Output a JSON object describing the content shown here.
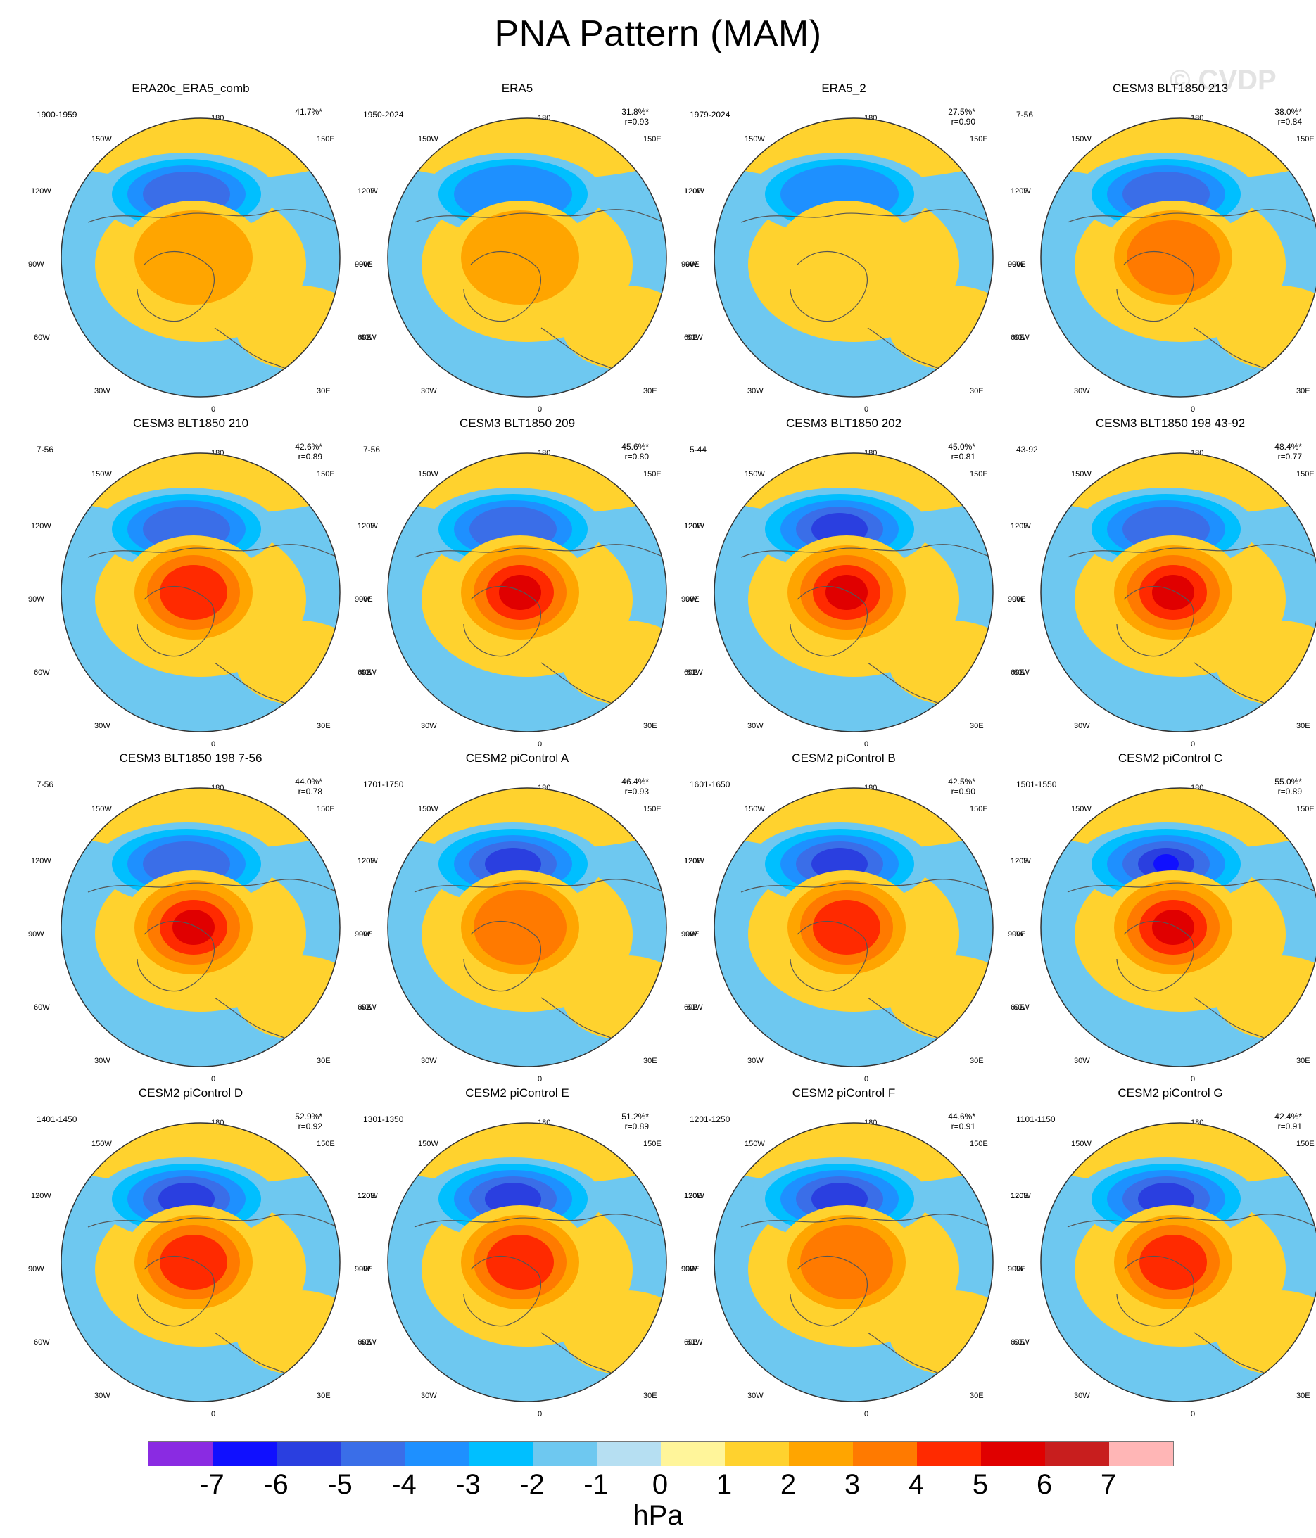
{
  "title": "PNA Pattern (MAM)",
  "watermark": "© CVDP",
  "lon_labels": {
    "top": "180",
    "bottom": "0",
    "upper_left": "150W",
    "upper_right": "150E",
    "mid_upper_left": "120W",
    "mid_upper_right": "120E",
    "left": "90W",
    "right": "90E",
    "mid_lower_left": "60W",
    "mid_lower_right": "60E",
    "lower_left": "30W",
    "lower_right": "30E"
  },
  "panels": [
    {
      "title": "ERA20c_ERA5_comb",
      "years": "1900-1959",
      "pct": "41.7%*",
      "r": ""
    },
    {
      "title": "ERA5",
      "years": "1950-2024",
      "pct": "31.8%*",
      "r": "r=0.93"
    },
    {
      "title": "ERA5_2",
      "years": "1979-2024",
      "pct": "27.5%*",
      "r": "r=0.90"
    },
    {
      "title": "CESM3 BLT1850 213",
      "years": "7-56",
      "pct": "38.0%*",
      "r": "r=0.84"
    },
    {
      "title": "CESM3 BLT1850 210",
      "years": "7-56",
      "pct": "42.6%*",
      "r": "r=0.89"
    },
    {
      "title": "CESM3 BLT1850 209",
      "years": "7-56",
      "pct": "45.6%*",
      "r": "r=0.80"
    },
    {
      "title": "CESM3 BLT1850 202",
      "years": "5-44",
      "pct": "45.0%*",
      "r": "r=0.81"
    },
    {
      "title": "CESM3 BLT1850 198 43-92",
      "years": "43-92",
      "pct": "48.4%*",
      "r": "r=0.77"
    },
    {
      "title": "CESM3 BLT1850 198 7-56",
      "years": "7-56",
      "pct": "44.0%*",
      "r": "r=0.78"
    },
    {
      "title": "CESM2 piControl A",
      "years": "1701-1750",
      "pct": "46.4%*",
      "r": "r=0.93"
    },
    {
      "title": "CESM2 piControl B",
      "years": "1601-1650",
      "pct": "42.5%*",
      "r": "r=0.90"
    },
    {
      "title": "CESM2 piControl C",
      "years": "1501-1550",
      "pct": "55.0%*",
      "r": "r=0.89"
    },
    {
      "title": "CESM2 piControl D",
      "years": "1401-1450",
      "pct": "52.9%*",
      "r": "r=0.92"
    },
    {
      "title": "CESM2 piControl E",
      "years": "1301-1350",
      "pct": "51.2%*",
      "r": "r=0.89"
    },
    {
      "title": "CESM2 piControl F",
      "years": "1201-1250",
      "pct": "44.6%*",
      "r": "r=0.91"
    },
    {
      "title": "CESM2 piControl G",
      "years": "1101-1150",
      "pct": "42.4%*",
      "r": "r=0.91"
    }
  ],
  "field": {
    "neg_level": [
      -4,
      -3,
      -3,
      -4,
      -4,
      -4,
      -5,
      -4,
      -4,
      -5,
      -5,
      -6,
      -5,
      -5,
      -5,
      -5
    ],
    "pos_level": [
      2,
      2,
      1,
      3,
      4,
      5,
      5,
      5,
      5,
      3,
      4,
      5,
      4,
      4,
      3,
      4
    ]
  },
  "colorbar": {
    "colors": [
      "#8a2be2",
      "#1010ff",
      "#2a3fe0",
      "#3a6ee8",
      "#1e90ff",
      "#00bfff",
      "#6ec8f0",
      "#b6dff2",
      "#fff59a",
      "#ffd22e",
      "#ffa500",
      "#ff7a00",
      "#ff2a00",
      "#e00000",
      "#c81e1e",
      "#ffb6b6"
    ],
    "ticks": [
      "-7",
      "-6",
      "-5",
      "-4",
      "-3",
      "-2",
      "-1",
      "0",
      "1",
      "2",
      "3",
      "4",
      "5",
      "6",
      "7"
    ],
    "units": "hPa"
  }
}
